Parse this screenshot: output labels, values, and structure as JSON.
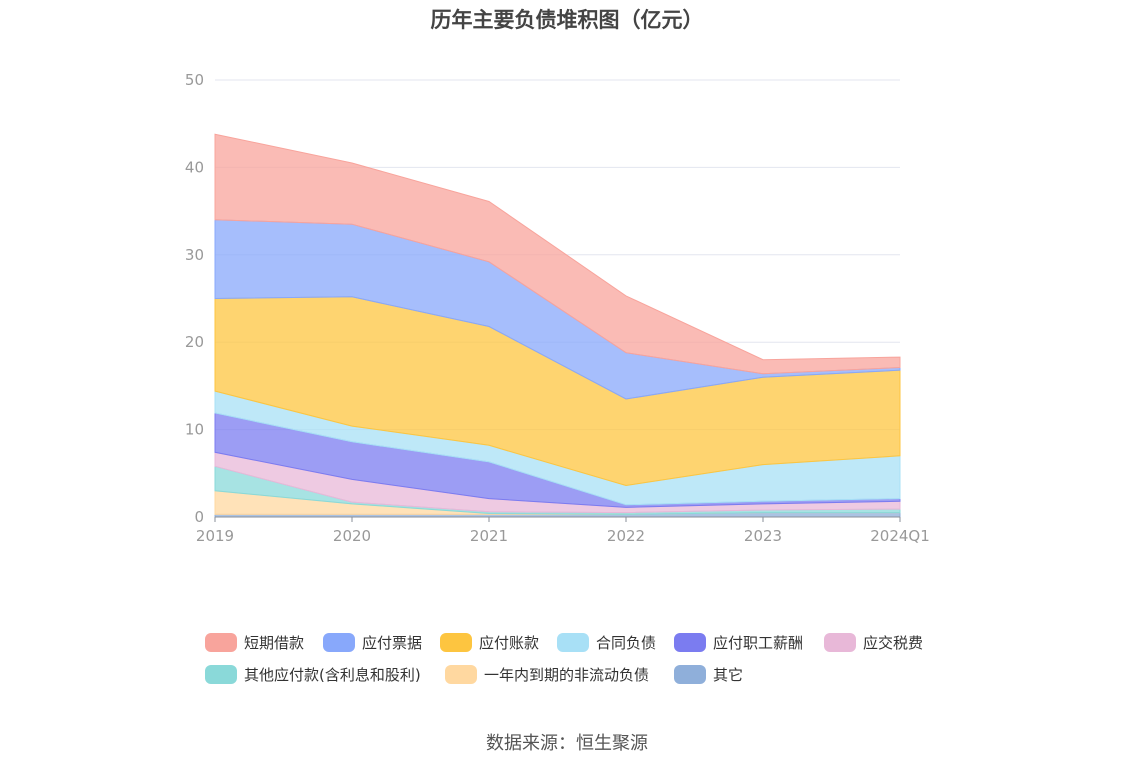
{
  "chart_data": {
    "type": "area",
    "title": "历年主要负债堆积图（亿元）",
    "categories": [
      "2019",
      "2020",
      "2021",
      "2022",
      "2023",
      "2024Q1"
    ],
    "ylim": [
      0,
      50
    ],
    "yticks": [
      0,
      10,
      20,
      30,
      40,
      50
    ],
    "stacked": true,
    "grid": true,
    "legend_position": "bottom",
    "series": [
      {
        "name": "其它",
        "color": "#8fafda",
        "values": [
          0.3,
          0.3,
          0.3,
          0.3,
          0.5,
          0.5
        ]
      },
      {
        "name": "一年内到期的非流动负债",
        "color": "#ffd8a0",
        "values": [
          2.7,
          1.2,
          0.1,
          0.0,
          0.0,
          0.0
        ]
      },
      {
        "name": "其他应付款(含利息和股利)",
        "color": "#8ad9d9",
        "values": [
          2.8,
          0.2,
          0.2,
          0.2,
          0.3,
          0.4
        ]
      },
      {
        "name": "应交税费",
        "color": "#e8b8d8",
        "values": [
          1.6,
          2.6,
          1.5,
          0.6,
          0.7,
          0.9
        ]
      },
      {
        "name": "应付职工薪酬",
        "color": "#7b7cf0",
        "values": [
          4.5,
          4.3,
          4.2,
          0.3,
          0.3,
          0.3
        ]
      },
      {
        "name": "合同负债",
        "color": "#a8e0f6",
        "values": [
          2.5,
          1.8,
          1.9,
          2.2,
          4.2,
          4.9
        ]
      },
      {
        "name": "应付账款",
        "color": "#fdc540",
        "values": [
          10.6,
          14.8,
          13.6,
          9.9,
          10.0,
          9.8
        ]
      },
      {
        "name": "应付票据",
        "color": "#88a8fb",
        "values": [
          9.0,
          8.3,
          7.4,
          5.3,
          0.4,
          0.3
        ]
      },
      {
        "name": "短期借款",
        "color": "#f8a49c",
        "values": [
          9.8,
          7.0,
          6.9,
          6.5,
          1.6,
          1.2
        ]
      }
    ],
    "legend_order": [
      "短期借款",
      "应付票据",
      "应付账款",
      "合同负债",
      "应付职工薪酬",
      "应交税费",
      "其他应付款(含利息和股利)",
      "一年内到期的非流动负债",
      "其它"
    ]
  },
  "source_text": "数据来源：恒生聚源"
}
